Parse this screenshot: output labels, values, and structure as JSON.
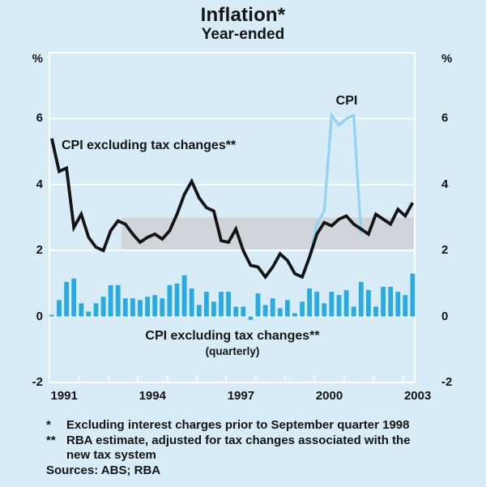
{
  "header": {
    "title": "Inflation*",
    "subtitle": "Year-ended"
  },
  "axes": {
    "unit_left": "%",
    "unit_right": "%",
    "y_ticks": [
      6,
      4,
      2,
      0,
      -2
    ],
    "y_gridlines": [
      6,
      4,
      2,
      0
    ],
    "ylim": [
      -2,
      8
    ],
    "x_tick_years": [
      1991,
      1992,
      1993,
      1994,
      1995,
      1996,
      1997,
      1998,
      1999,
      2000,
      2001,
      2002,
      2003
    ],
    "x_year_labels": [
      "1991",
      "1994",
      "1997",
      "2000",
      "2003"
    ],
    "x_year_label_centers": [
      1991.5,
      1994.5,
      1997.5,
      2000.5,
      2003.5
    ]
  },
  "annotations": {
    "line_label": "CPI excluding tax changes**",
    "cpi_label": "CPI",
    "bar_label": "CPI excluding tax changes**",
    "bar_sublabel": "(quarterly)"
  },
  "footnotes": {
    "marker1": "*",
    "text1": "Excluding interest charges prior to September quarter 1998",
    "marker2": "**",
    "text2_line1": "RBA estimate, adjusted for tax changes associated with the",
    "text2_line2": "new tax system",
    "sources": "Sources: ABS; RBA"
  },
  "colors": {
    "background": "#d7ecf7",
    "grid": "#ffffff",
    "target_band": "#d1d4d8",
    "bars": "#29aae1",
    "cpi_line": "#90d2f2",
    "ex_tax_line": "#141414",
    "text": "#000000"
  },
  "chart_data": {
    "type": "line+bar",
    "title": "Inflation* — Year-ended",
    "x_axis": "Year (quarterly observations), 1991 to mid-2003",
    "y_axis": "Per cent",
    "ylim": [
      -2,
      8
    ],
    "grid": "on",
    "target_band": {
      "label": "2-3% band",
      "from": 2,
      "to": 3,
      "x_from": 1993.45,
      "x_to": 2003.4
    },
    "series": [
      {
        "name": "CPI excluding tax changes (year-ended)",
        "type": "line",
        "color": "#141414",
        "start_quarter": "1991Q1",
        "values": [
          5.4,
          4.4,
          4.5,
          2.7,
          3.1,
          2.4,
          2.1,
          2.0,
          2.6,
          2.9,
          2.8,
          2.5,
          2.25,
          2.4,
          2.5,
          2.35,
          2.6,
          3.1,
          3.7,
          4.1,
          3.6,
          3.3,
          3.2,
          2.3,
          2.25,
          2.65,
          2.0,
          1.55,
          1.5,
          1.2,
          1.5,
          1.9,
          1.7,
          1.3,
          1.2,
          1.8,
          2.5,
          2.85,
          2.75,
          2.95,
          3.05,
          2.8,
          2.65,
          2.5,
          3.1,
          2.95,
          2.8,
          3.25,
          3.05,
          3.45
        ]
      },
      {
        "name": "CPI (year-ended)",
        "type": "line",
        "color": "#90d2f2",
        "start_quarter": "1999Q3",
        "values": [
          1.2,
          1.8,
          2.8,
          3.2,
          6.1,
          5.8,
          6.0,
          6.1,
          2.5
        ]
      },
      {
        "name": "CPI excluding tax changes (quarterly)",
        "type": "bar",
        "color": "#29aae1",
        "start_quarter": "1991Q1",
        "values": [
          0.05,
          0.5,
          1.05,
          1.15,
          0.4,
          0.15,
          0.4,
          0.6,
          0.95,
          0.95,
          0.55,
          0.55,
          0.5,
          0.6,
          0.65,
          0.55,
          0.95,
          1.0,
          1.25,
          0.85,
          0.35,
          0.75,
          0.45,
          0.75,
          0.75,
          0.3,
          0.3,
          -0.1,
          0.7,
          0.35,
          0.55,
          0.25,
          0.5,
          0.1,
          0.45,
          0.85,
          0.75,
          0.4,
          0.75,
          0.65,
          0.8,
          0.3,
          1.05,
          0.8,
          0.3,
          0.9,
          0.9,
          0.75,
          0.65,
          1.3
        ]
      }
    ]
  }
}
